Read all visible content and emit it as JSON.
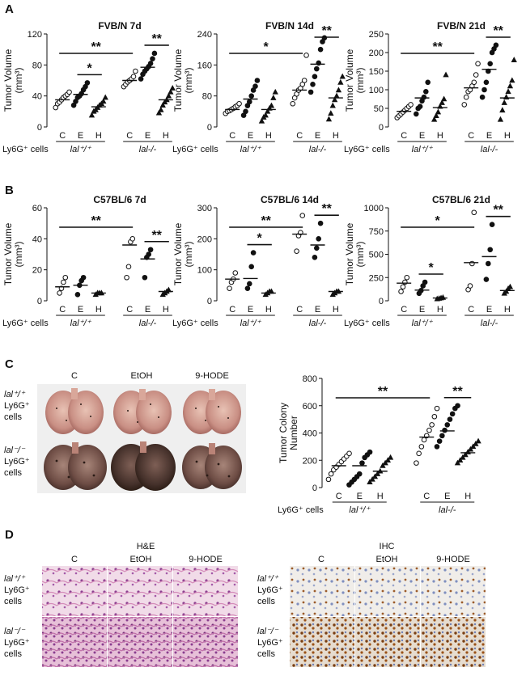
{
  "figure": {
    "panels": {
      "A": "A",
      "B": "B",
      "C": "C",
      "D": "D"
    },
    "common": {
      "y_label": "Tumor Volume",
      "y_unit": "(mm³)",
      "row_label": "Ly6G⁺ cells",
      "categories": [
        "C",
        "E",
        "H"
      ],
      "group1": "lal⁺/⁺",
      "group2": "lal-/-"
    }
  },
  "chart_data": [
    {
      "id": "A1",
      "type": "scatter",
      "title": "FVB/N 7d",
      "ylim": [
        0,
        120
      ],
      "yticks": [
        0,
        40,
        80,
        120
      ],
      "groups": [
        {
          "name": "lal+/+",
          "C": [
            25,
            30,
            32,
            35,
            38,
            40,
            42,
            45
          ],
          "E": [
            28,
            33,
            38,
            40,
            43,
            48,
            52,
            57
          ],
          "H": [
            15,
            20,
            22,
            25,
            28,
            30,
            33,
            38
          ]
        },
        {
          "name": "lal-/-",
          "C": [
            52,
            55,
            58,
            60,
            62,
            65,
            72
          ],
          "E": [
            62,
            68,
            72,
            75,
            78,
            82,
            88,
            95
          ],
          "H": [
            18,
            22,
            28,
            32,
            35,
            40,
            45,
            50
          ]
        }
      ],
      "means": [
        [
          35,
          42,
          26
        ],
        [
          60,
          77,
          35
        ]
      ],
      "significance": [
        {
          "label": "**",
          "from": [
            0,
            "C"
          ],
          "to": [
            1,
            "C"
          ]
        },
        {
          "label": "*",
          "from": [
            0,
            "E"
          ],
          "to": [
            0,
            "H"
          ]
        },
        {
          "label": "**",
          "from": [
            1,
            "E"
          ],
          "to": [
            1,
            "H"
          ]
        }
      ]
    },
    {
      "id": "A2",
      "type": "scatter",
      "title": "FVB/N 14d",
      "ylim": [
        0,
        240
      ],
      "yticks": [
        0,
        80,
        160,
        240
      ],
      "groups": [
        {
          "name": "lal+/+",
          "C": [
            35,
            40,
            42,
            45,
            48,
            52,
            55,
            60
          ],
          "E": [
            30,
            40,
            55,
            65,
            80,
            95,
            105,
            120
          ],
          "H": [
            15,
            25,
            30,
            40,
            48,
            55,
            75,
            90
          ]
        },
        {
          "name": "lal-/-",
          "C": [
            60,
            75,
            85,
            95,
            100,
            110,
            120,
            185
          ],
          "E": [
            90,
            110,
            130,
            150,
            165,
            200,
            220,
            230
          ],
          "H": [
            20,
            35,
            55,
            70,
            80,
            95,
            115,
            130
          ]
        }
      ],
      "means": [
        [
          45,
          72,
          45
        ],
        [
          95,
          162,
          75
        ]
      ],
      "significance": [
        {
          "label": "*",
          "from": [
            0,
            "C"
          ],
          "to": [
            1,
            "C"
          ]
        },
        {
          "label": "**",
          "from": [
            1,
            "E"
          ],
          "to": [
            1,
            "H"
          ]
        }
      ]
    },
    {
      "id": "A3",
      "type": "scatter",
      "title": "FVB/N 21d",
      "ylim": [
        0,
        250
      ],
      "yticks": [
        0,
        50,
        100,
        150,
        200,
        250
      ],
      "groups": [
        {
          "name": "lal+/+",
          "C": [
            25,
            30,
            35,
            40,
            45,
            50,
            55,
            60
          ],
          "E": [
            35,
            50,
            55,
            70,
            80,
            95,
            120
          ],
          "H": [
            20,
            30,
            40,
            55,
            65,
            75,
            140
          ],
          "H_alt": []
        },
        {
          "name": "lal-/-",
          "C": [
            60,
            80,
            95,
            100,
            110,
            120,
            140,
            170
          ],
          "E": [
            80,
            100,
            120,
            150,
            170,
            200,
            210,
            220
          ],
          "H": [
            20,
            45,
            65,
            80,
            95,
            110,
            125,
            180
          ]
        }
      ],
      "means": [
        [
          42,
          78,
          52
        ],
        [
          105,
          155,
          78
        ]
      ],
      "significance": [
        {
          "label": "**",
          "from": [
            0,
            "C"
          ],
          "to": [
            1,
            "C"
          ]
        },
        {
          "label": "**",
          "from": [
            1,
            "E"
          ],
          "to": [
            1,
            "H"
          ]
        }
      ]
    },
    {
      "id": "B1",
      "type": "scatter",
      "title": "C57BL/6 7d",
      "ylim": [
        0,
        60
      ],
      "yticks": [
        0,
        20,
        40,
        60
      ],
      "groups": [
        {
          "name": "lal+/+",
          "C": [
            5,
            8,
            12,
            15
          ],
          "E": [
            4,
            10,
            13,
            15
          ],
          "H": [
            4,
            5,
            5,
            5
          ]
        },
        {
          "name": "lal-/-",
          "C": [
            15,
            22,
            38,
            40
          ],
          "E": [
            15,
            28,
            30,
            33
          ],
          "H": [
            4,
            5,
            6,
            7
          ]
        }
      ],
      "means": [
        [
          9,
          10,
          5
        ],
        [
          36,
          27,
          6
        ]
      ],
      "significance": [
        {
          "label": "**",
          "from": [
            0,
            "C"
          ],
          "to": [
            1,
            "C"
          ]
        },
        {
          "label": "**",
          "from": [
            1,
            "E"
          ],
          "to": [
            1,
            "H"
          ]
        }
      ]
    },
    {
      "id": "B2",
      "type": "scatter",
      "title": "C57BL/6 14d",
      "ylim": [
        0,
        300
      ],
      "yticks": [
        0,
        100,
        200,
        300
      ],
      "groups": [
        {
          "name": "lal+/+",
          "C": [
            40,
            60,
            70,
            90
          ],
          "E": [
            40,
            55,
            110,
            155
          ],
          "H": [
            20,
            25,
            30,
            30
          ]
        },
        {
          "name": "lal-/-",
          "C": [
            160,
            210,
            220,
            275
          ],
          "E": [
            140,
            170,
            200,
            250
          ],
          "H": [
            20,
            25,
            30,
            30
          ]
        }
      ],
      "means": [
        [
          70,
          72,
          25
        ],
        [
          215,
          180,
          30
        ]
      ],
      "significance": [
        {
          "label": "**",
          "from": [
            0,
            "C"
          ],
          "to": [
            1,
            "C"
          ]
        },
        {
          "label": "*",
          "from": [
            0,
            "E"
          ],
          "to": [
            0,
            "H"
          ]
        },
        {
          "label": "**",
          "from": [
            1,
            "E"
          ],
          "to": [
            1,
            "H"
          ]
        }
      ]
    },
    {
      "id": "B3",
      "type": "scatter",
      "title": "C57BL/6 21d",
      "ylim": [
        0,
        1000
      ],
      "yticks": [
        0,
        250,
        500,
        750,
        1000
      ],
      "groups": [
        {
          "name": "lal+/+",
          "C": [
            100,
            150,
            200,
            250
          ],
          "E": [
            80,
            110,
            160,
            200
          ],
          "H": [
            20,
            25,
            30,
            35
          ]
        },
        {
          "name": "lal-/-",
          "C": [
            120,
            160,
            400,
            950
          ],
          "E": [
            230,
            400,
            550,
            820
          ],
          "H": [
            80,
            100,
            130,
            150
          ]
        }
      ],
      "means": [
        [
          190,
          115,
          30
        ],
        [
          410,
          475,
          110
        ]
      ],
      "significance": [
        {
          "label": "*",
          "from": [
            0,
            "C"
          ],
          "to": [
            1,
            "C"
          ]
        },
        {
          "label": "*",
          "from": [
            0,
            "E"
          ],
          "to": [
            0,
            "H"
          ]
        },
        {
          "label": "**",
          "from": [
            1,
            "E"
          ],
          "to": [
            1,
            "H"
          ]
        }
      ]
    },
    {
      "id": "C1",
      "type": "scatter",
      "title": "",
      "ylabel": "Tumor Colony Number",
      "ylim": [
        0,
        800
      ],
      "yticks": [
        0,
        200,
        400,
        600,
        800
      ],
      "groups": [
        {
          "name": "lal+/+",
          "C": [
            60,
            100,
            130,
            150,
            170,
            190,
            210,
            230,
            250
          ],
          "E": [
            20,
            40,
            60,
            80,
            100,
            180,
            220,
            240,
            260
          ],
          "H": [
            40,
            60,
            80,
            100,
            120,
            160,
            180,
            200,
            220
          ]
        },
        {
          "name": "lal-/-",
          "C": [
            180,
            250,
            300,
            350,
            380,
            420,
            460,
            520,
            580
          ],
          "E": [
            300,
            340,
            380,
            420,
            460,
            500,
            540,
            580,
            600
          ],
          "H": [
            180,
            200,
            220,
            240,
            260,
            280,
            300,
            320,
            340
          ]
        }
      ],
      "means": [
        [
          160,
          160,
          120
        ],
        [
          370,
          415,
          255
        ]
      ],
      "significance": [
        {
          "label": "**",
          "from": [
            0,
            "C"
          ],
          "to": [
            1,
            "C"
          ]
        },
        {
          "label": "**",
          "from": [
            1,
            "E"
          ],
          "to": [
            1,
            "H"
          ]
        }
      ]
    }
  ],
  "panel_c": {
    "columns": [
      "C",
      "EtOH",
      "9-HODE"
    ],
    "rows": [
      {
        "line1": "lal⁺/⁺",
        "line2": "Ly6G⁺",
        "line3": "cells"
      },
      {
        "line1": "lal⁻/⁻",
        "line2": "Ly6G⁺",
        "line3": "cells"
      }
    ]
  },
  "panel_d": {
    "he_title": "H&E",
    "ihc_title": "IHC",
    "columns": [
      "C",
      "EtOH",
      "9-HODE"
    ],
    "rows": [
      {
        "line1": "lal⁺/⁺",
        "line2": "Ly6G⁺",
        "line3": "cells"
      },
      {
        "line1": "lal⁻/⁻",
        "line2": "Ly6G⁺",
        "line3": "cells"
      }
    ]
  }
}
